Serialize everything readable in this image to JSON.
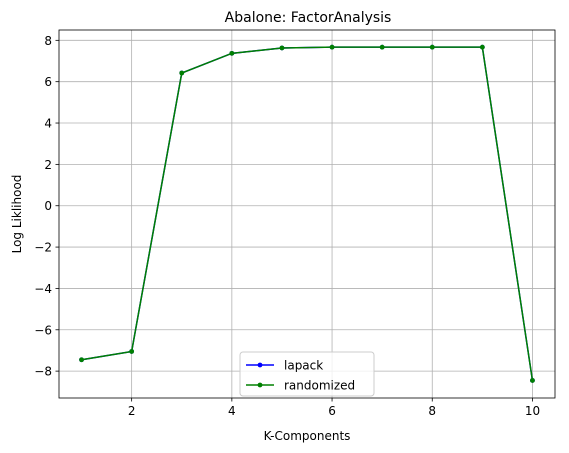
{
  "chart_data": {
    "type": "line",
    "title": "Abalone: FactorAnalysis",
    "xlabel": "K-Components",
    "ylabel": "Log Liklihood",
    "xlim": [
      0.55,
      10.45
    ],
    "ylim": [
      -9.3,
      8.5
    ],
    "xticks": [
      2,
      4,
      6,
      8,
      10
    ],
    "yticks": [
      -8,
      -6,
      -4,
      -2,
      0,
      2,
      4,
      6,
      8
    ],
    "grid": true,
    "legend_position": "lower center",
    "x": [
      1,
      2,
      3,
      4,
      5,
      6,
      7,
      8,
      9,
      10
    ],
    "series": [
      {
        "name": "lapack",
        "color": "#0000ff",
        "values": [
          -7.45,
          -7.05,
          6.42,
          7.37,
          7.63,
          7.67,
          7.67,
          7.67,
          7.67,
          -8.45
        ]
      },
      {
        "name": "randomized",
        "color": "#008000",
        "values": [
          -7.45,
          -7.05,
          6.42,
          7.37,
          7.63,
          7.67,
          7.67,
          7.67,
          7.67,
          -8.45
        ]
      }
    ]
  }
}
